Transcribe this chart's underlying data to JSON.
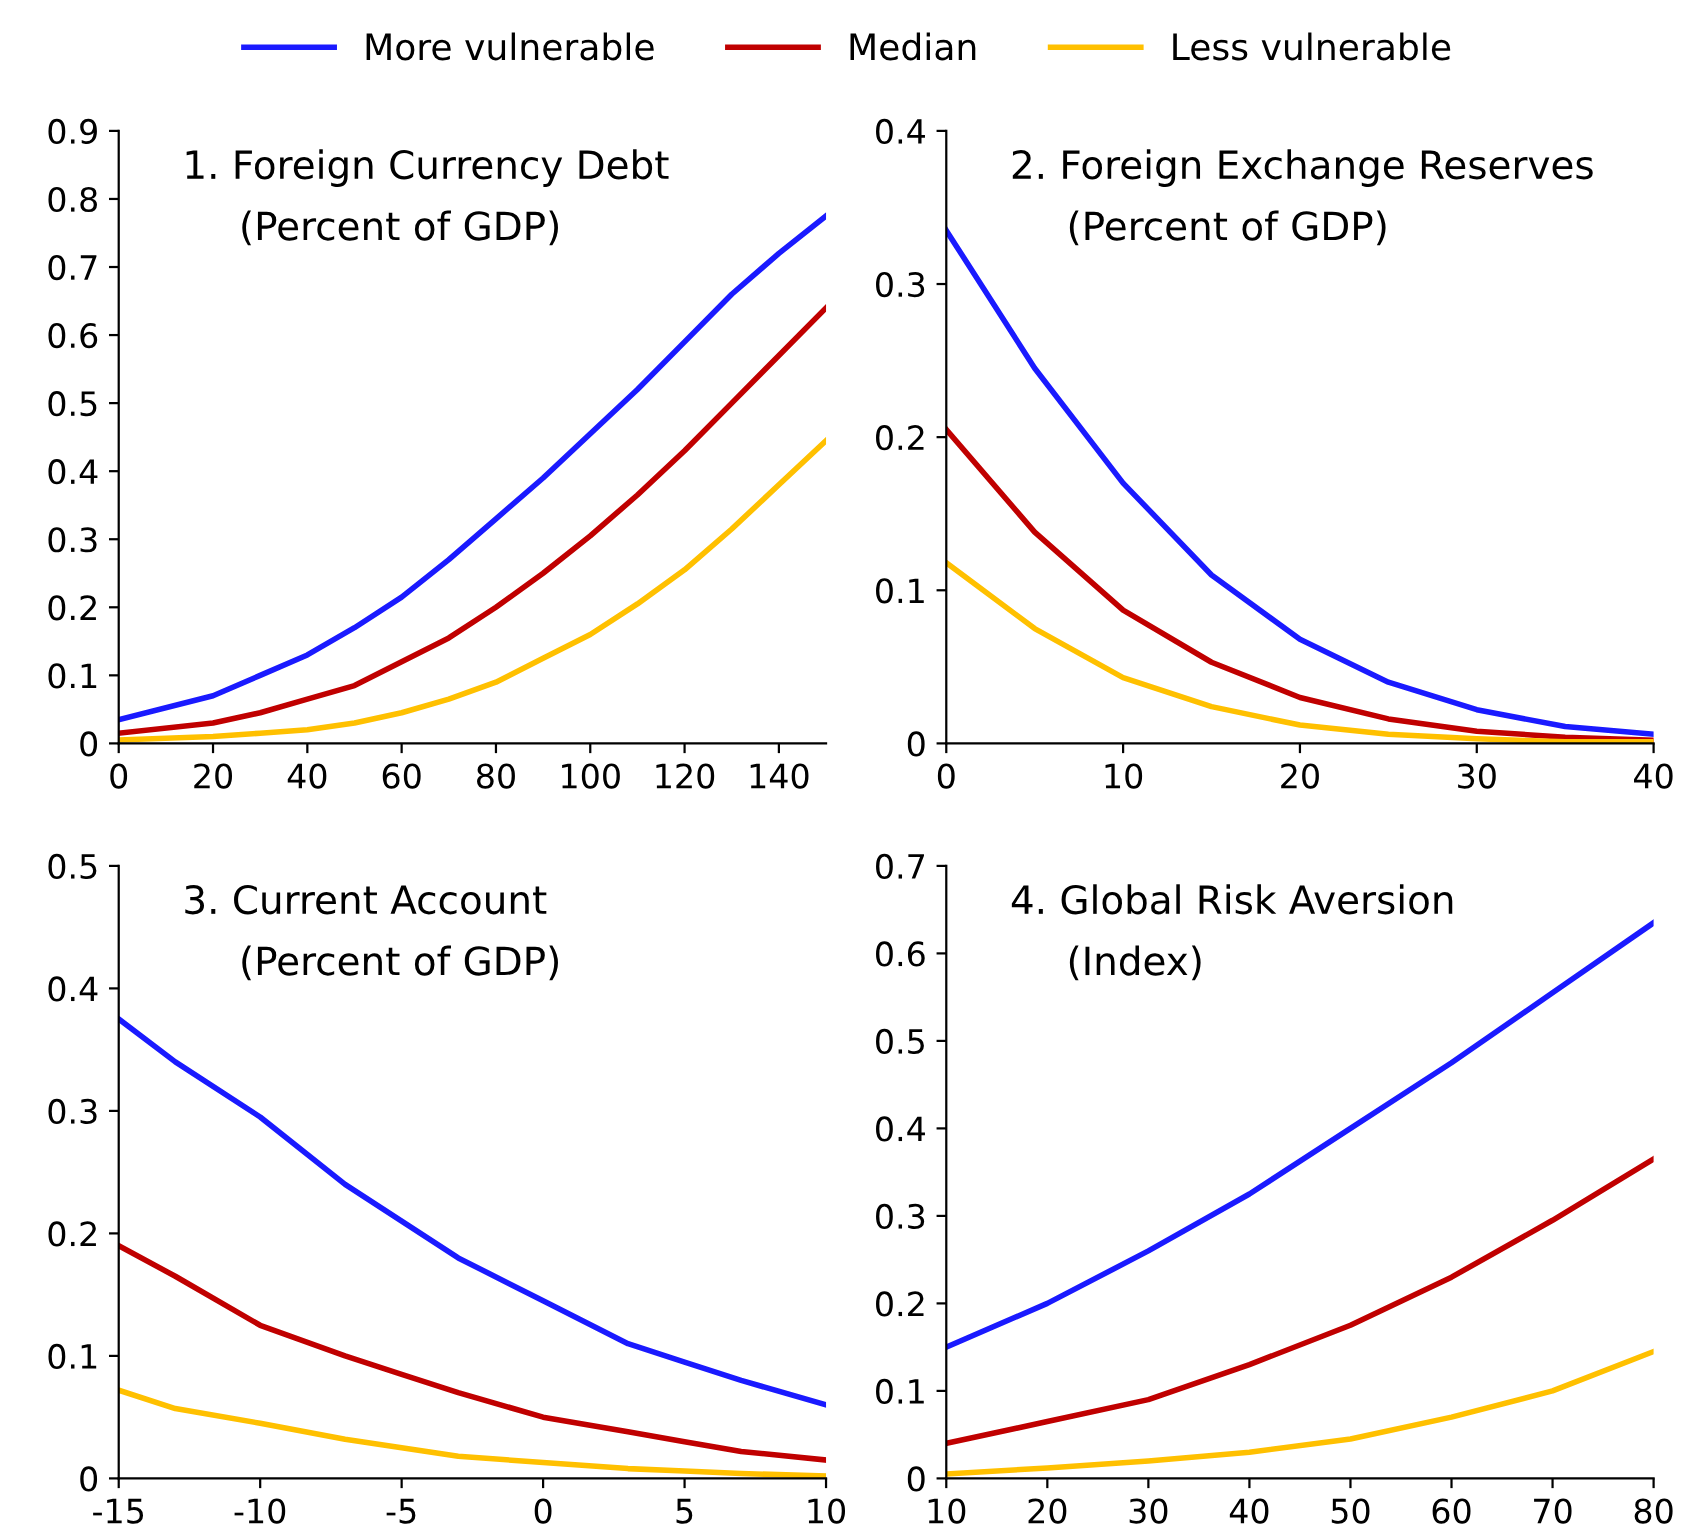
{
  "chart_data": [
    {
      "type": "line",
      "title": "1. Foreign Currency Debt",
      "subtitle": "(Percent of GDP)",
      "legend": "top",
      "xlim": [
        0,
        150
      ],
      "xticks": [
        0,
        20,
        40,
        60,
        80,
        100,
        120,
        140
      ],
      "ylim": [
        0,
        0.9
      ],
      "yticks": [
        0,
        0.1,
        0.2,
        0.3,
        0.4,
        0.5,
        0.6,
        0.7,
        0.8,
        0.9
      ],
      "x": [
        0,
        20,
        30,
        40,
        50,
        60,
        70,
        80,
        90,
        100,
        110,
        120,
        130,
        140,
        150
      ],
      "series": [
        {
          "name": "More vulnerable",
          "color": "#1a1aff",
          "values": [
            0.035,
            0.07,
            0.1,
            0.13,
            0.17,
            0.215,
            0.27,
            0.33,
            0.39,
            0.455,
            0.52,
            0.59,
            0.66,
            0.72,
            0.775
          ]
        },
        {
          "name": "Median",
          "color": "#c00000",
          "values": [
            0.015,
            0.03,
            0.045,
            0.065,
            0.085,
            0.12,
            0.155,
            0.2,
            0.25,
            0.305,
            0.365,
            0.43,
            0.5,
            0.57,
            0.64
          ]
        },
        {
          "name": "Less vulnerable",
          "color": "#ffc000",
          "values": [
            0.005,
            0.01,
            0.015,
            0.02,
            0.03,
            0.045,
            0.065,
            0.09,
            0.125,
            0.16,
            0.205,
            0.255,
            0.315,
            0.38,
            0.445
          ]
        }
      ]
    },
    {
      "type": "line",
      "title": "2. Foreign Exchange Reserves",
      "subtitle": "(Percent of GDP)",
      "xlim": [
        0,
        40
      ],
      "xticks": [
        0,
        10,
        20,
        30,
        40
      ],
      "ylim": [
        0,
        0.4
      ],
      "yticks": [
        0,
        0.1,
        0.2,
        0.3,
        0.4
      ],
      "x": [
        0,
        5,
        10,
        15,
        20,
        25,
        30,
        35,
        40
      ],
      "series": [
        {
          "name": "More vulnerable",
          "color": "#1a1aff",
          "values": [
            0.335,
            0.245,
            0.17,
            0.11,
            0.068,
            0.04,
            0.022,
            0.011,
            0.006
          ]
        },
        {
          "name": "Median",
          "color": "#c00000",
          "values": [
            0.205,
            0.138,
            0.087,
            0.053,
            0.03,
            0.016,
            0.008,
            0.004,
            0.002
          ]
        },
        {
          "name": "Less vulnerable",
          "color": "#ffc000",
          "values": [
            0.118,
            0.075,
            0.043,
            0.024,
            0.012,
            0.006,
            0.003,
            0.001,
            0.001
          ]
        }
      ]
    },
    {
      "type": "line",
      "title": "3. Current Account",
      "subtitle": "(Percent of GDP)",
      "xlim": [
        -15,
        10
      ],
      "xticks": [
        -15,
        -10,
        -5,
        0,
        5,
        10
      ],
      "ylim": [
        0,
        0.5
      ],
      "yticks": [
        0,
        0.1,
        0.2,
        0.3,
        0.4,
        0.5
      ],
      "x": [
        -15,
        -13,
        -10,
        -7,
        -5,
        -3,
        0,
        3,
        5,
        7,
        10
      ],
      "series": [
        {
          "name": "More vulnerable",
          "color": "#1a1aff",
          "values": [
            0.375,
            0.34,
            0.295,
            0.24,
            0.21,
            0.18,
            0.145,
            0.11,
            0.095,
            0.08,
            0.06
          ]
        },
        {
          "name": "Median",
          "color": "#c00000",
          "values": [
            0.19,
            0.165,
            0.125,
            0.1,
            0.085,
            0.07,
            0.05,
            0.038,
            0.03,
            0.022,
            0.015
          ]
        },
        {
          "name": "Less vulnerable",
          "color": "#ffc000",
          "values": [
            0.072,
            0.057,
            0.045,
            0.032,
            0.025,
            0.018,
            0.013,
            0.008,
            0.006,
            0.004,
            0.002
          ]
        }
      ]
    },
    {
      "type": "line",
      "title": "4. Global Risk Aversion",
      "subtitle": "(Index)",
      "xlim": [
        10,
        80
      ],
      "xticks": [
        10,
        20,
        30,
        40,
        50,
        60,
        70,
        80
      ],
      "ylim": [
        0,
        0.7
      ],
      "yticks": [
        0,
        0.1,
        0.2,
        0.3,
        0.4,
        0.5,
        0.6,
        0.7
      ],
      "x": [
        10,
        20,
        30,
        40,
        50,
        60,
        70,
        80
      ],
      "series": [
        {
          "name": "More vulnerable",
          "color": "#1a1aff",
          "values": [
            0.15,
            0.2,
            0.26,
            0.325,
            0.4,
            0.475,
            0.555,
            0.635
          ]
        },
        {
          "name": "Median",
          "color": "#c00000",
          "values": [
            0.04,
            0.065,
            0.09,
            0.13,
            0.175,
            0.23,
            0.295,
            0.365
          ]
        },
        {
          "name": "Less vulnerable",
          "color": "#ffc000",
          "values": [
            0.005,
            0.012,
            0.02,
            0.03,
            0.045,
            0.07,
            0.1,
            0.145
          ]
        }
      ]
    }
  ]
}
